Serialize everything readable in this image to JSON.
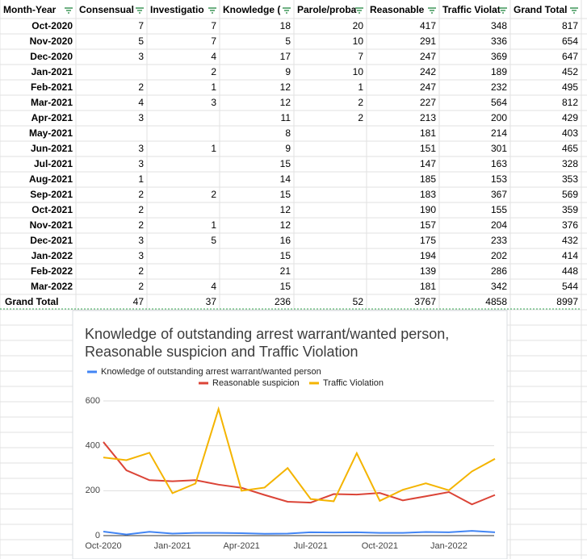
{
  "table": {
    "headers": [
      "Month-Year",
      "Consensual",
      "Investigatio",
      "Knowledge (",
      "Parole/proba",
      "Reasonable",
      "Traffic Violat",
      "Grand Total"
    ],
    "rows": [
      [
        "Oct-2020",
        7,
        7,
        18,
        20,
        417,
        348,
        817
      ],
      [
        "Nov-2020",
        5,
        7,
        5,
        10,
        291,
        336,
        654
      ],
      [
        "Dec-2020",
        3,
        4,
        17,
        7,
        247,
        369,
        647
      ],
      [
        "Jan-2021",
        null,
        2,
        9,
        10,
        242,
        189,
        452
      ],
      [
        "Feb-2021",
        2,
        1,
        12,
        1,
        247,
        232,
        495
      ],
      [
        "Mar-2021",
        4,
        3,
        12,
        2,
        227,
        564,
        812
      ],
      [
        "Apr-2021",
        3,
        null,
        11,
        2,
        213,
        200,
        429
      ],
      [
        "May-2021",
        null,
        null,
        8,
        null,
        181,
        214,
        403
      ],
      [
        "Jun-2021",
        3,
        1,
        9,
        null,
        151,
        301,
        465
      ],
      [
        "Jul-2021",
        3,
        null,
        15,
        null,
        147,
        163,
        328
      ],
      [
        "Aug-2021",
        1,
        null,
        14,
        null,
        185,
        153,
        353
      ],
      [
        "Sep-2021",
        2,
        2,
        15,
        null,
        183,
        367,
        569
      ],
      [
        "Oct-2021",
        2,
        null,
        12,
        null,
        190,
        155,
        359
      ],
      [
        "Nov-2021",
        2,
        1,
        12,
        null,
        157,
        204,
        376
      ],
      [
        "Dec-2021",
        3,
        5,
        16,
        null,
        175,
        233,
        432
      ],
      [
        "Jan-2022",
        3,
        null,
        15,
        null,
        194,
        202,
        414
      ],
      [
        "Feb-2022",
        2,
        null,
        21,
        null,
        139,
        286,
        448
      ],
      [
        "Mar-2022",
        2,
        4,
        15,
        null,
        181,
        342,
        544
      ],
      [
        "Grand Total",
        47,
        37,
        236,
        52,
        3767,
        4858,
        8997
      ]
    ]
  },
  "chart_data": {
    "type": "line",
    "title": "Knowledge of outstanding arrest warrant/wanted person, Reasonable suspicion and Traffic Violation",
    "categories": [
      "Oct-2020",
      null,
      null,
      "Jan-2021",
      null,
      null,
      "Apr-2021",
      null,
      null,
      "Jul-2021",
      null,
      null,
      "Oct-2021",
      null,
      null,
      "Jan-2022",
      null,
      null
    ],
    "series": [
      {
        "name": "Knowledge of outstanding arrest warrant/wanted person",
        "color": "#4285f4",
        "values": [
          18,
          5,
          17,
          9,
          12,
          12,
          11,
          8,
          9,
          15,
          14,
          15,
          12,
          12,
          16,
          15,
          21,
          15
        ]
      },
      {
        "name": "Reasonable suspicion",
        "color": "#db4437",
        "values": [
          417,
          291,
          247,
          242,
          247,
          227,
          213,
          181,
          151,
          147,
          185,
          183,
          190,
          157,
          175,
          194,
          139,
          181
        ]
      },
      {
        "name": "Traffic Violation",
        "color": "#f4b400",
        "values": [
          348,
          336,
          369,
          189,
          232,
          564,
          200,
          214,
          301,
          163,
          153,
          367,
          155,
          204,
          233,
          202,
          286,
          342
        ]
      }
    ],
    "ylim": [
      0,
      600
    ],
    "yticks": [
      0,
      200,
      400,
      600
    ],
    "grid": true
  }
}
